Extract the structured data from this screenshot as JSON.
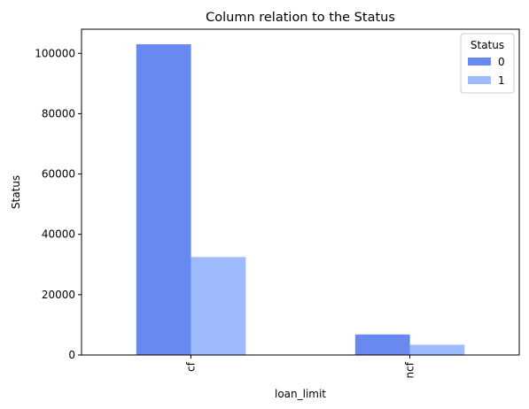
{
  "chart_data": {
    "type": "bar",
    "title": "Column relation to the Status",
    "xlabel": "loan_limit",
    "ylabel": "Status",
    "categories": [
      "cf",
      "ncf"
    ],
    "series": [
      {
        "name": "0",
        "values": [
          103000,
          6800
        ],
        "color": "#6889f0"
      },
      {
        "name": "1",
        "values": [
          32500,
          3400
        ],
        "color": "#9dbbfd"
      }
    ],
    "ylim": [
      0,
      108000
    ],
    "yticks": [
      0,
      20000,
      40000,
      60000,
      80000,
      100000
    ],
    "legend": {
      "title": "Status",
      "placement": "top-right"
    },
    "grid": false
  }
}
